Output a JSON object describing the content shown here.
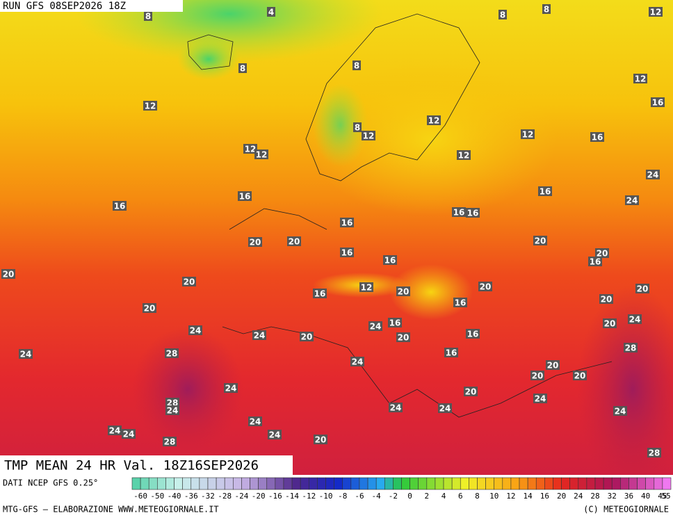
{
  "header": {
    "run": "RUN GFS 08SEP2026 18Z"
  },
  "title": "TMP MEAN 24 HR Val. 18Z16SEP2026",
  "map": {
    "labels": [
      4,
      8,
      8,
      8,
      12,
      8,
      8,
      12,
      16,
      12,
      12,
      8,
      12,
      12,
      16,
      12,
      12,
      12,
      24,
      16,
      16,
      24,
      16,
      16,
      16,
      16,
      20,
      20,
      20,
      20,
      16,
      16,
      16,
      20,
      20,
      12,
      20,
      20,
      16,
      20,
      20,
      16,
      20,
      24,
      16,
      20,
      24,
      24,
      24,
      20,
      20,
      16,
      28,
      24,
      28,
      16,
      24,
      20,
      20,
      20,
      24,
      20,
      24,
      28,
      24,
      24,
      24,
      24,
      24,
      24,
      24,
      24,
      20,
      28,
      28
    ]
  },
  "legend": {
    "source": "DATI NCEP GFS 0.25°",
    "ticks": [
      -60,
      -50,
      -40,
      -36,
      -32,
      -28,
      -24,
      -20,
      -16,
      -14,
      -12,
      -10,
      -8,
      -6,
      -4,
      -2,
      0,
      2,
      4,
      6,
      8,
      10,
      12,
      14,
      16,
      20,
      24,
      28,
      32,
      36,
      40,
      45,
      55
    ]
  },
  "footer": {
    "credit": "MTG-GFS — ELABORAZIONE WWW.METEOGIORNALE.IT",
    "copyright": "(C) METEOGIORNALE"
  }
}
